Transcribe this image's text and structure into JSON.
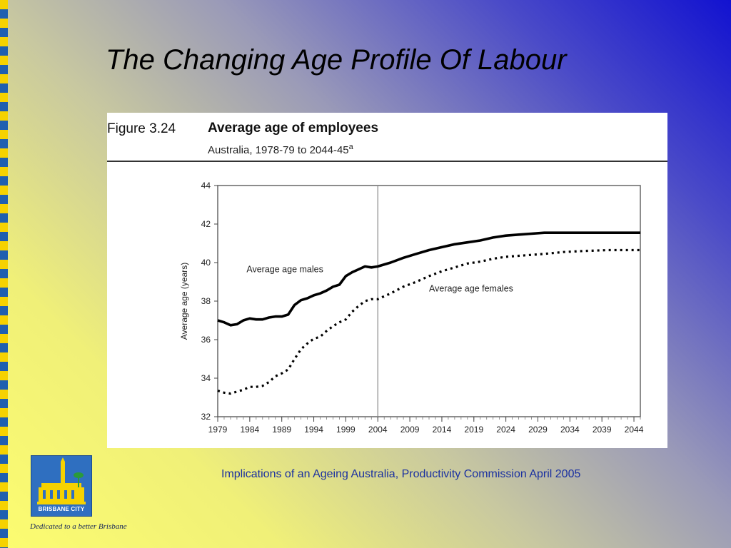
{
  "slide": {
    "title": "The Changing Age Profile Of Labour",
    "source": "Implications of an Ageing Australia, Productivity Commission April 2005",
    "logo_text": "BRISBANE CITY",
    "tagline": "Dedicated to a better Brisbane"
  },
  "figure": {
    "number": "Figure 3.24",
    "title": "Average age of employees",
    "subtitle": "Australia, 1978-79 to 2044-45",
    "subtitle_note": "a"
  },
  "chart_data": {
    "type": "line",
    "ylabel": "Average age (years)",
    "xlabel": "",
    "xlim": [
      1979,
      2045
    ],
    "ylim": [
      32,
      44
    ],
    "yticks": [
      32,
      34,
      36,
      38,
      40,
      42,
      44
    ],
    "xticks": [
      "1979",
      "1984",
      "1989",
      "1994",
      "1999",
      "2004",
      "2009",
      "2014",
      "2019",
      "2024",
      "2029",
      "2034",
      "2039",
      "2044"
    ],
    "divider_year": 2004,
    "grid": false,
    "annotations": [
      {
        "text": "Average age males",
        "x": 1983.5,
        "y": 39.5
      },
      {
        "text": "Average age females",
        "x": 2012,
        "y": 38.5
      }
    ],
    "series": [
      {
        "label": "Average age males",
        "color": "#000000",
        "style": "solid",
        "x": [
          1979,
          1980,
          1981,
          1982,
          1983,
          1984,
          1985,
          1986,
          1987,
          1988,
          1989,
          1990,
          1991,
          1992,
          1993,
          1994,
          1995,
          1996,
          1997,
          1998,
          1999,
          2000,
          2001,
          2002,
          2003,
          2004,
          2006,
          2008,
          2010,
          2012,
          2014,
          2016,
          2018,
          2020,
          2022,
          2024,
          2026,
          2028,
          2030,
          2032,
          2035,
          2040,
          2045
        ],
        "y": [
          37.0,
          36.9,
          36.75,
          36.8,
          37.0,
          37.1,
          37.05,
          37.05,
          37.15,
          37.2,
          37.2,
          37.3,
          37.8,
          38.05,
          38.15,
          38.3,
          38.4,
          38.55,
          38.75,
          38.85,
          39.3,
          39.5,
          39.65,
          39.8,
          39.75,
          39.8,
          40.0,
          40.25,
          40.45,
          40.65,
          40.8,
          40.95,
          41.05,
          41.15,
          41.3,
          41.4,
          41.45,
          41.5,
          41.55,
          41.55,
          41.55,
          41.55,
          41.55
        ]
      },
      {
        "label": "Average age females",
        "color": "#000000",
        "style": "dotted",
        "x": [
          1979,
          1980,
          1981,
          1982,
          1983,
          1984,
          1985,
          1986,
          1987,
          1988,
          1989,
          1990,
          1991,
          1992,
          1993,
          1994,
          1995,
          1996,
          1997,
          1998,
          1999,
          2000,
          2001,
          2002,
          2003,
          2004,
          2006,
          2008,
          2010,
          2012,
          2014,
          2016,
          2018,
          2020,
          2022,
          2024,
          2026,
          2028,
          2030,
          2033,
          2036,
          2040,
          2045
        ],
        "y": [
          33.35,
          33.25,
          33.2,
          33.3,
          33.4,
          33.55,
          33.55,
          33.6,
          33.8,
          34.1,
          34.25,
          34.45,
          35.0,
          35.5,
          35.8,
          36.05,
          36.15,
          36.45,
          36.7,
          36.9,
          37.05,
          37.45,
          37.75,
          38.0,
          38.1,
          38.1,
          38.4,
          38.75,
          39.0,
          39.3,
          39.55,
          39.75,
          39.95,
          40.05,
          40.2,
          40.3,
          40.35,
          40.4,
          40.45,
          40.55,
          40.6,
          40.65,
          40.65
        ]
      }
    ]
  }
}
